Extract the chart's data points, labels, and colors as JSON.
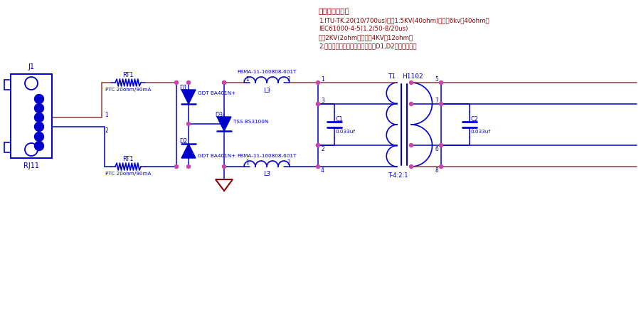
{
  "bg_color": "#ffffff",
  "blue": "#0000cc",
  "red": "#8b0000",
  "wire_red": "#8b3a3a",
  "pink": "#cc44aa",
  "annotation_title": "备注：防护能力",
  "annotation_line1": "1.ITU-TK.20(10/700us)差模1.5KV(40ohm)，共模6kv（40ohm）",
  "annotation_line2": "IEC61000-4-5(1.2/50-8/20us)",
  "annotation_line3": "差模2KV(2ohm），共模4KV（12ohm）",
  "annotation_line4": "2.若设备为塑胶外壳，则不需要接D1,D2进行共模防护",
  "label_J1": "J1",
  "label_RJ11": "RJ11",
  "label_RT1_top": "RT1",
  "label_PTC_top": "PTC 20ohm/90mA",
  "label_RT1_bot": "RT1",
  "label_PTC_bot": "PTC 20ohm/90mA",
  "label_GDT_top": "GDT BA401N+",
  "label_GDT_bot": "GDT BA401N+",
  "label_D1": "D1",
  "label_D2": "D2",
  "label_D3": "D3",
  "label_TSS": "TSS BS3100N",
  "label_FBMA_top": "FBMA-11-160808-601T",
  "label_L3_top": "L3",
  "label_FBMA_bot": "FBMA-11-160808-601T",
  "label_L3_bot": "L3",
  "label_C1": "C1",
  "label_C1_val": "0.033uf",
  "label_C2": "C2",
  "label_C2_val": "0.033uf",
  "label_T1": "T1",
  "label_H1102": "H1102",
  "label_T_ratio": "T-4:2:1",
  "figw": 9.01,
  "figh": 4.35,
  "dpi": 100
}
